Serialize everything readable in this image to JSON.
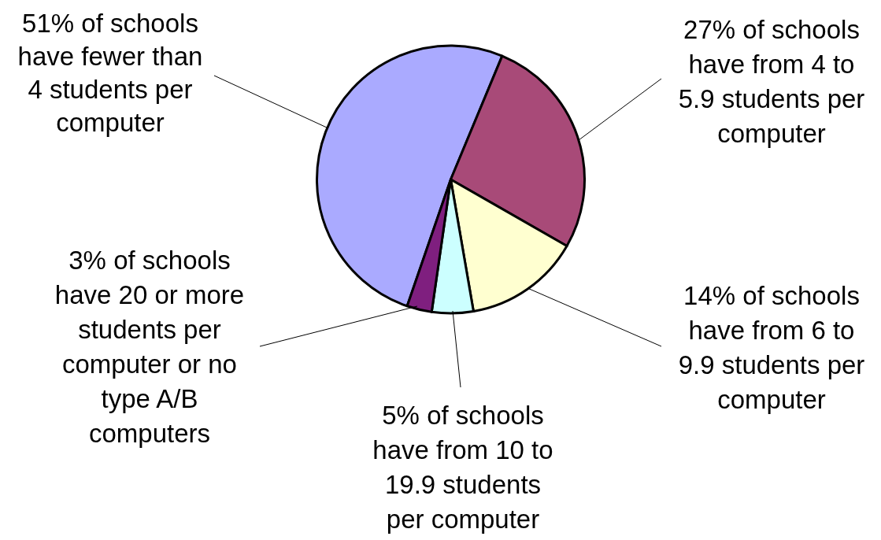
{
  "chart_data": {
    "type": "pie",
    "categories": [
      "51% of schools have fewer than 4 students per computer",
      "27% of schools have from 4 to 5.9 students per computer",
      "14% of schools have from 6 to 9.9 students per computer",
      "5% of schools have from 10 to 19.9 students per computer",
      "3% of schools have 20 or more students per computer or no type A/B computers"
    ],
    "values": [
      51,
      27,
      14,
      5,
      3
    ],
    "colors": [
      "#aaaaff",
      "#a84a78",
      "#ffffd0",
      "#ccffff",
      "#7f1f7f"
    ]
  }
}
